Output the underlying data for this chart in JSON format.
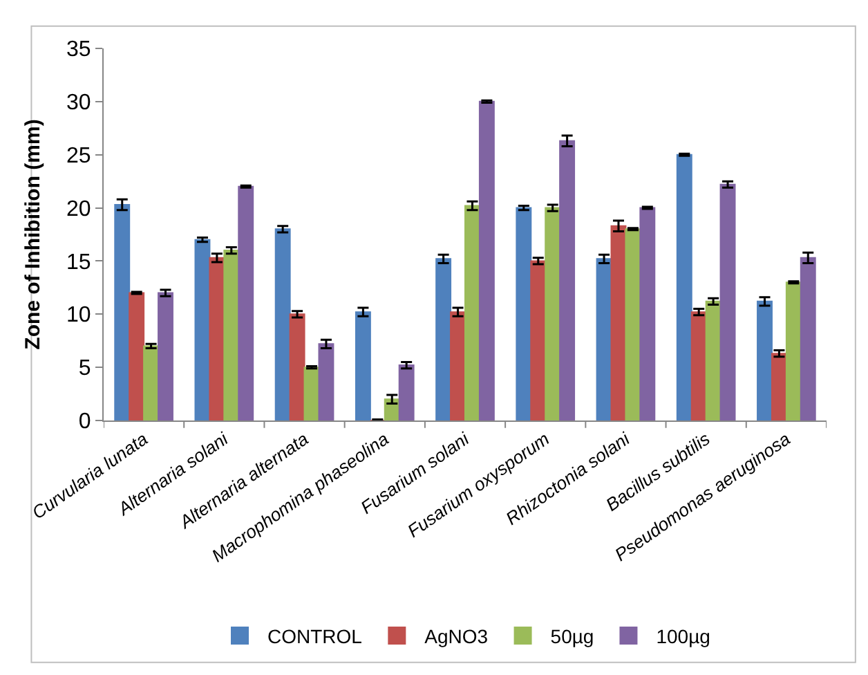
{
  "chart_data": {
    "type": "bar",
    "ylabel": "Zone of Inhibition (mm)",
    "categories": [
      "Curvularia lunata",
      "Alternaria solani",
      "Alternaria alternata",
      "Macrophomina phaseolina",
      "Fusarium solani",
      "Fusarium oxysporum",
      "Rhizoctonia solani",
      "Bacillus subtilis",
      "Pseudomonas aeruginosa"
    ],
    "series": [
      {
        "name": "CONTROL",
        "color": "#4f81bd",
        "values": [
          20.3,
          17,
          18,
          10.2,
          15.2,
          20,
          15.2,
          25,
          11.2
        ],
        "errors": [
          0.5,
          0.2,
          0.3,
          0.4,
          0.4,
          0.2,
          0.4,
          0.1,
          0.4
        ]
      },
      {
        "name": "AgNO3",
        "color": "#c0504d",
        "values": [
          12,
          15.3,
          10,
          0,
          10.2,
          15,
          18.3,
          10.2,
          6.3
        ],
        "errors": [
          0.1,
          0.4,
          0.3,
          0.1,
          0.4,
          0.3,
          0.5,
          0.3,
          0.3
        ]
      },
      {
        "name": "50µg",
        "color": "#9bbb59",
        "values": [
          7,
          16,
          5,
          2,
          20.2,
          20,
          18,
          11.2,
          13
        ],
        "errors": [
          0.2,
          0.3,
          0.1,
          0.4,
          0.4,
          0.3,
          0.1,
          0.3,
          0.1
        ]
      },
      {
        "name": "100µg",
        "color": "#8064a2",
        "values": [
          12,
          22,
          7.2,
          5.2,
          30,
          26.3,
          20,
          22.2,
          15.3
        ],
        "errors": [
          0.3,
          0.1,
          0.4,
          0.3,
          0.1,
          0.5,
          0.1,
          0.3,
          0.5
        ]
      }
    ],
    "ylim": [
      0,
      35
    ],
    "yticks": [
      0,
      5,
      10,
      15,
      20,
      25,
      30,
      35
    ],
    "legend": "bottom"
  }
}
